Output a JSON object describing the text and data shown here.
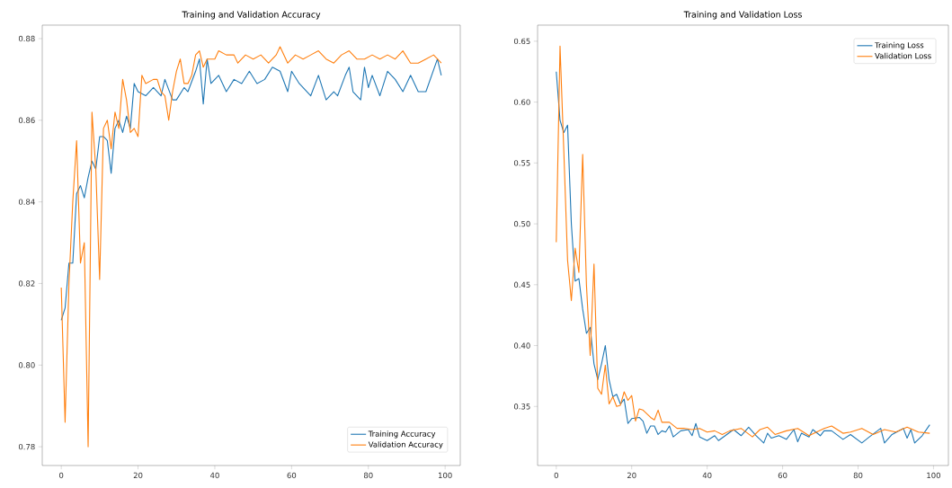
{
  "chart_data": [
    {
      "type": "line",
      "title": "Training and Validation Accuracy",
      "xlim": [
        -4.95,
        103.95
      ],
      "ylim": [
        0.7754,
        0.8833
      ],
      "legend": "bottom right",
      "grid": false,
      "xticks": [
        0,
        20,
        40,
        60,
        80,
        100
      ],
      "yticks": [
        {
          "value": 0.78,
          "label": "0.78"
        },
        {
          "value": 0.8,
          "label": "0.80"
        },
        {
          "value": 0.82,
          "label": "0.82"
        },
        {
          "value": 0.84,
          "label": "0.84"
        },
        {
          "value": 0.86,
          "label": "0.86"
        },
        {
          "value": 0.88,
          "label": "0.88"
        }
      ],
      "series": [
        {
          "name": "Training Accuracy",
          "color": "#1f77b4",
          "x": [
            0,
            1,
            2,
            3,
            4,
            5,
            6,
            7,
            8,
            9,
            10,
            11,
            12,
            13,
            14,
            15,
            16,
            17,
            18,
            19,
            20,
            22,
            24,
            26,
            27,
            29,
            30,
            32,
            33,
            35,
            36,
            37,
            38,
            39,
            41,
            43,
            45,
            47,
            49,
            51,
            53,
            55,
            57,
            59,
            60,
            62,
            65,
            67,
            69,
            71,
            72,
            74,
            75,
            76,
            78,
            79,
            80,
            81,
            83,
            85,
            87,
            89,
            91,
            93,
            95,
            98,
            99
          ],
          "values": [
            0.811,
            0.814,
            0.825,
            0.825,
            0.842,
            0.844,
            0.841,
            0.846,
            0.85,
            0.848,
            0.856,
            0.856,
            0.855,
            0.847,
            0.858,
            0.86,
            0.857,
            0.861,
            0.858,
            0.869,
            0.867,
            0.866,
            0.868,
            0.866,
            0.87,
            0.865,
            0.865,
            0.868,
            0.867,
            0.872,
            0.875,
            0.864,
            0.875,
            0.869,
            0.871,
            0.867,
            0.87,
            0.869,
            0.872,
            0.869,
            0.87,
            0.873,
            0.872,
            0.867,
            0.872,
            0.869,
            0.866,
            0.871,
            0.865,
            0.867,
            0.866,
            0.871,
            0.873,
            0.867,
            0.865,
            0.873,
            0.868,
            0.871,
            0.866,
            0.872,
            0.87,
            0.867,
            0.871,
            0.867,
            0.867,
            0.875,
            0.871
          ]
        },
        {
          "name": "Validation Accuracy",
          "color": "#ff7f0e",
          "x": [
            0,
            1,
            2,
            3,
            4,
            5,
            6,
            7,
            8,
            9,
            10,
            11,
            12,
            13,
            14,
            15,
            16,
            17,
            18,
            19,
            20,
            21,
            22,
            24,
            25,
            26,
            27,
            28,
            29,
            30,
            31,
            32,
            33,
            34,
            35,
            36,
            37,
            38,
            40,
            41,
            43,
            45,
            46,
            48,
            50,
            52,
            54,
            56,
            57,
            59,
            61,
            63,
            65,
            67,
            69,
            71,
            73,
            75,
            77,
            79,
            81,
            83,
            85,
            87,
            89,
            91,
            93,
            95,
            97,
            99
          ],
          "values": [
            0.819,
            0.786,
            0.82,
            0.84,
            0.855,
            0.825,
            0.83,
            0.78,
            0.862,
            0.848,
            0.821,
            0.858,
            0.86,
            0.853,
            0.862,
            0.858,
            0.87,
            0.865,
            0.857,
            0.858,
            0.856,
            0.871,
            0.869,
            0.87,
            0.87,
            0.867,
            0.866,
            0.86,
            0.867,
            0.872,
            0.875,
            0.869,
            0.869,
            0.871,
            0.876,
            0.877,
            0.873,
            0.875,
            0.875,
            0.877,
            0.876,
            0.876,
            0.874,
            0.876,
            0.875,
            0.876,
            0.874,
            0.876,
            0.878,
            0.874,
            0.876,
            0.875,
            0.876,
            0.877,
            0.875,
            0.874,
            0.876,
            0.877,
            0.875,
            0.875,
            0.876,
            0.875,
            0.876,
            0.875,
            0.877,
            0.874,
            0.874,
            0.875,
            0.876,
            0.874
          ]
        }
      ]
    },
    {
      "type": "line",
      "title": "Training and Validation Loss",
      "xlim": [
        -4.95,
        103.95
      ],
      "ylim": [
        0.3015,
        0.6632
      ],
      "legend": "top right",
      "grid": false,
      "xticks": [
        0,
        20,
        40,
        60,
        80,
        100
      ],
      "yticks": [
        {
          "value": 0.35,
          "label": "0.35"
        },
        {
          "value": 0.4,
          "label": "0.40"
        },
        {
          "value": 0.45,
          "label": "0.45"
        },
        {
          "value": 0.5,
          "label": "0.50"
        },
        {
          "value": 0.55,
          "label": "0.55"
        },
        {
          "value": 0.6,
          "label": "0.60"
        },
        {
          "value": 0.65,
          "label": "0.65"
        }
      ],
      "series": [
        {
          "name": "Training Loss",
          "color": "#1f77b4",
          "x": [
            0,
            1,
            2,
            3,
            4,
            5,
            6,
            7,
            8,
            9,
            10,
            11,
            12,
            13,
            14,
            15,
            16,
            17,
            18,
            19,
            20,
            22,
            23,
            24,
            25,
            26,
            27,
            28,
            29,
            30,
            31,
            33,
            35,
            36,
            37,
            38,
            40,
            42,
            43,
            47,
            49,
            51,
            53,
            55,
            56,
            57,
            59,
            61,
            63,
            64,
            65,
            67,
            68,
            70,
            71,
            73,
            76,
            78,
            81,
            83,
            86,
            87,
            89,
            92,
            93,
            94,
            95,
            97,
            99
          ],
          "values": [
            0.625,
            0.585,
            0.575,
            0.581,
            0.5,
            0.453,
            0.455,
            0.43,
            0.41,
            0.415,
            0.385,
            0.372,
            0.385,
            0.4,
            0.372,
            0.358,
            0.36,
            0.352,
            0.356,
            0.336,
            0.34,
            0.341,
            0.338,
            0.328,
            0.334,
            0.334,
            0.327,
            0.33,
            0.329,
            0.334,
            0.325,
            0.33,
            0.331,
            0.326,
            0.336,
            0.325,
            0.322,
            0.326,
            0.322,
            0.331,
            0.326,
            0.333,
            0.326,
            0.32,
            0.328,
            0.324,
            0.326,
            0.323,
            0.331,
            0.321,
            0.328,
            0.325,
            0.331,
            0.326,
            0.33,
            0.33,
            0.323,
            0.327,
            0.32,
            0.325,
            0.332,
            0.32,
            0.327,
            0.332,
            0.324,
            0.331,
            0.32,
            0.326,
            0.335
          ]
        },
        {
          "name": "Validation Loss",
          "color": "#ff7f0e",
          "x": [
            0,
            1,
            2,
            3,
            4,
            5,
            6,
            7,
            8,
            9,
            10,
            11,
            12,
            13,
            14,
            15,
            16,
            17,
            18,
            19,
            20,
            21,
            22,
            23,
            25,
            26,
            27,
            28,
            30,
            32,
            34,
            36,
            38,
            40,
            42,
            44,
            46,
            49,
            52,
            54,
            56,
            58,
            61,
            64,
            67,
            71,
            73,
            76,
            78,
            81,
            84,
            87,
            90,
            93,
            96,
            99
          ],
          "values": [
            0.485,
            0.646,
            0.56,
            0.47,
            0.437,
            0.48,
            0.46,
            0.557,
            0.45,
            0.392,
            0.467,
            0.365,
            0.36,
            0.384,
            0.352,
            0.358,
            0.35,
            0.351,
            0.362,
            0.355,
            0.359,
            0.338,
            0.348,
            0.347,
            0.341,
            0.339,
            0.347,
            0.337,
            0.337,
            0.332,
            0.332,
            0.331,
            0.332,
            0.329,
            0.33,
            0.327,
            0.33,
            0.332,
            0.325,
            0.331,
            0.333,
            0.327,
            0.33,
            0.332,
            0.326,
            0.332,
            0.334,
            0.328,
            0.329,
            0.332,
            0.327,
            0.331,
            0.329,
            0.333,
            0.329,
            0.328
          ]
        }
      ]
    }
  ]
}
